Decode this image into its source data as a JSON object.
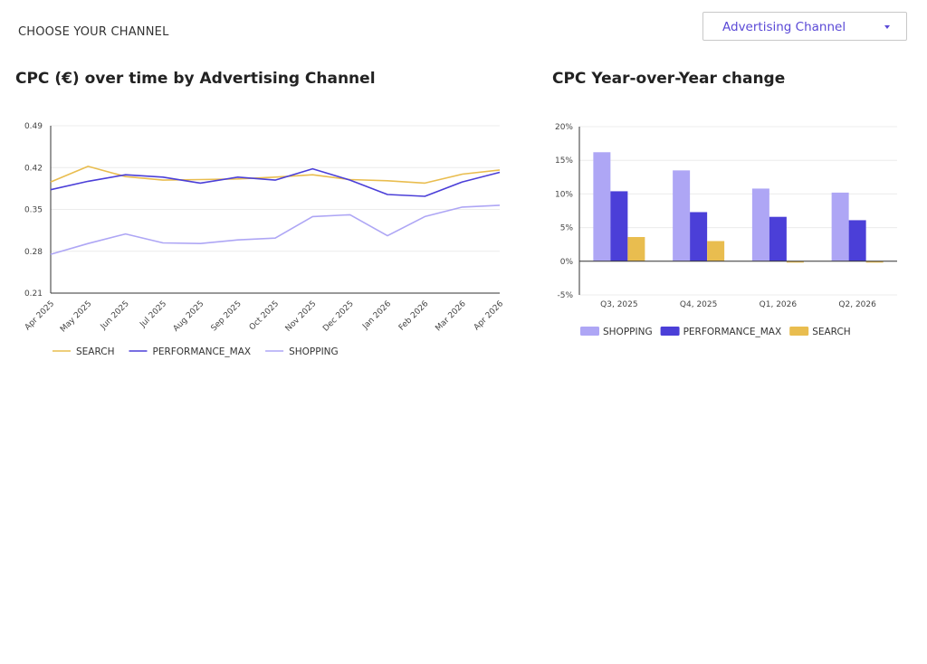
{
  "filter": {
    "label": "CHOOSE YOUR CHANNEL",
    "selected": "Advertising Channel",
    "accent_color": "#5a49d6"
  },
  "chart_data": [
    {
      "type": "line",
      "title": "CPC (€) over time by Advertising Channel",
      "x": [
        "Apr 2025",
        "May 2025",
        "Jun 2025",
        "Jul 2025",
        "Aug 2025",
        "Sep 2025",
        "Oct 2025",
        "Nov 2025",
        "Dec 2025",
        "Jan 2026",
        "Feb 2026",
        "Mar 2026",
        "Apr 2026"
      ],
      "ylim": [
        0.21,
        0.49
      ],
      "yticks": [
        "0.49",
        "0.42",
        "0.35",
        "0.28",
        "0.21"
      ],
      "grid": true,
      "legend": "bottom-left",
      "series": [
        {
          "name": "SEARCH",
          "color": "#e9bd4f",
          "values": [
            0.396,
            0.422,
            0.405,
            0.399,
            0.4,
            0.401,
            0.404,
            0.408,
            0.4,
            0.398,
            0.394,
            0.409,
            0.416
          ]
        },
        {
          "name": "PERFORMANCE_MAX",
          "color": "#4b3fd8",
          "values": [
            0.383,
            0.397,
            0.408,
            0.404,
            0.394,
            0.404,
            0.399,
            0.418,
            0.399,
            0.375,
            0.372,
            0.396,
            0.412
          ]
        },
        {
          "name": "SHOPPING",
          "color": "#aea6f5",
          "values": [
            0.275,
            0.293,
            0.309,
            0.294,
            0.293,
            0.299,
            0.302,
            0.338,
            0.341,
            0.306,
            0.338,
            0.354,
            0.357
          ]
        }
      ]
    },
    {
      "type": "bar",
      "title": "CPC Year-over-Year change",
      "categories": [
        "Q3, 2025",
        "Q4, 2025",
        "Q1, 2026",
        "Q2, 2026"
      ],
      "ylim": [
        -5,
        20
      ],
      "yticks": [
        "20%",
        "15%",
        "10%",
        "5%",
        "0%",
        "-5%"
      ],
      "grid": true,
      "legend": "bottom-left",
      "series": [
        {
          "name": "SHOPPING",
          "color": "#aea6f5",
          "values": [
            16.2,
            13.5,
            10.8,
            10.2
          ]
        },
        {
          "name": "PERFORMANCE_MAX",
          "color": "#4b3fd8",
          "values": [
            10.4,
            7.3,
            6.6,
            6.1
          ]
        },
        {
          "name": "SEARCH",
          "color": "#e9bd4f",
          "values": [
            3.6,
            3.0,
            -0.2,
            -0.2
          ]
        }
      ]
    }
  ]
}
